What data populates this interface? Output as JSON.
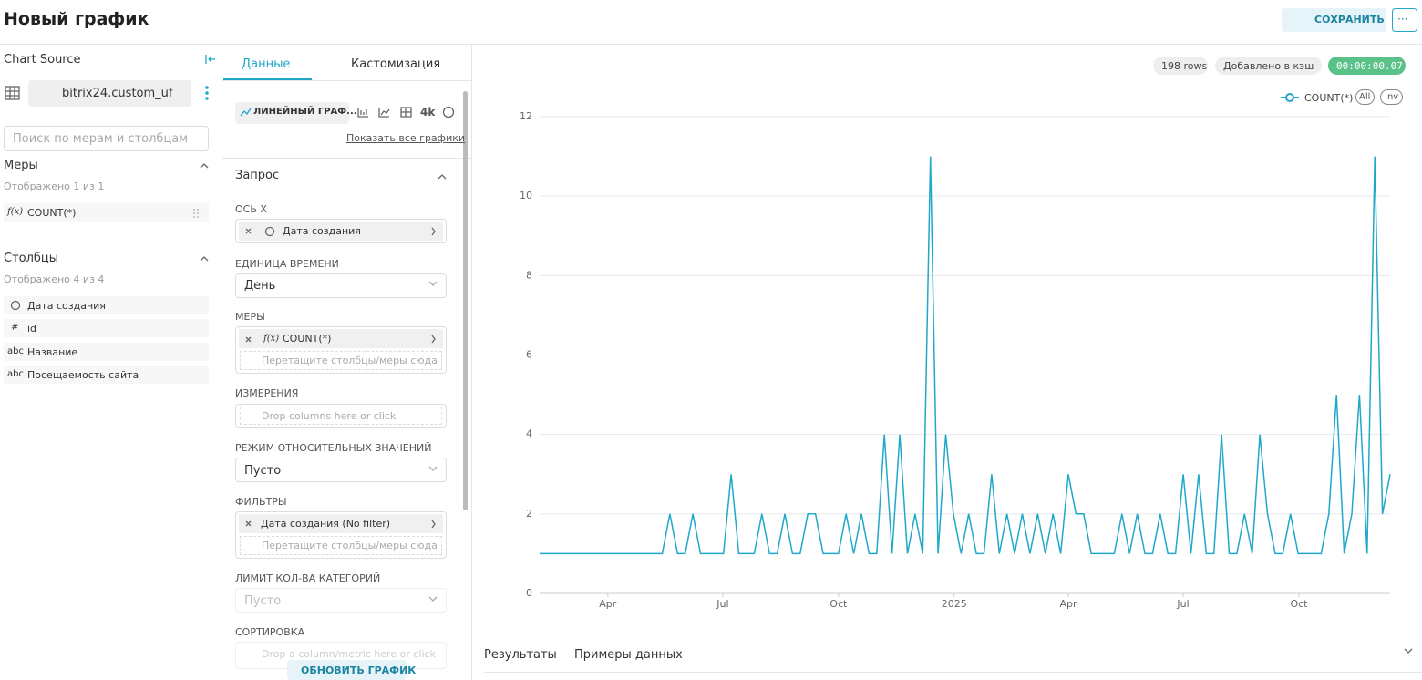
{
  "header": {
    "title": "Новый график",
    "save": "СОХРАНИТЬ",
    "more": "···"
  },
  "sidebar": {
    "title": "Chart Source",
    "dataset": "bitrix24.custom_uf",
    "search_placeholder": "Поиск по мерам и столбцам",
    "measures": {
      "title": "Меры",
      "count": "Отображено 1 из 1",
      "items": [
        {
          "icon": "f(x)",
          "name": "COUNT(*)"
        }
      ]
    },
    "columns": {
      "title": "Столбцы",
      "count": "Отображено 4 из 4",
      "items": [
        {
          "name": "Дата создания"
        },
        {
          "icon": "#",
          "name": "id"
        },
        {
          "icon": "abc",
          "name": "Название"
        },
        {
          "icon": "abc",
          "name": "Посещаемость сайта"
        }
      ]
    }
  },
  "editor": {
    "tabs": [
      "Данные",
      "Кастомизация"
    ],
    "chart_type": "ЛИНЕЙНЫЙ ГРАФ...",
    "resolution": "4k",
    "show_all": "Показать все графики",
    "section": "Запрос",
    "x_axis": {
      "label": "ОСЬ X",
      "value": "Дата создания"
    },
    "time_unit": {
      "label": "ЕДИНИЦА ВРЕМЕНИ",
      "value": "День"
    },
    "metrics": {
      "label": "МЕРЫ",
      "icon": "f(x)",
      "value": "COUNT(*)",
      "placeholder": "Перетащите столбцы/меры сюда"
    },
    "dimensions": {
      "label": "ИЗМЕРЕНИЯ",
      "placeholder": "Drop columns here or click"
    },
    "relative": {
      "label": "РЕЖИМ ОТНОСИТЕЛЬНЫХ ЗНАЧЕНИЙ",
      "value": "Пусто"
    },
    "filters": {
      "label": "ФИЛЬТРЫ",
      "value": "Дата создания (No filter)",
      "placeholder": "Перетащите столбцы/меры сюда"
    },
    "limit": {
      "label": "ЛИМИТ КОЛ-ВА КАТЕГОРИЙ",
      "value": "Пусто"
    },
    "sort": {
      "label": "СОРТИРОВКА",
      "placeholder": "Drop a column/metric here or click"
    },
    "update": "ОБНОВИТЬ ГРАФИК"
  },
  "status": {
    "rows": "198 rows",
    "cache": "Добавлено в кэш",
    "timer": "00:00:00.07"
  },
  "legend_controls": [
    "All",
    "Inv"
  ],
  "results_tabs": [
    "Результаты",
    "Примеры данных"
  ],
  "chart_data": {
    "type": "line",
    "categories": [
      null,
      null,
      null,
      null,
      null,
      null,
      null,
      null,
      null,
      null,
      null,
      null,
      null,
      null,
      null,
      null,
      null,
      null,
      null,
      null,
      null,
      null,
      null,
      null,
      null,
      null,
      null,
      null,
      null,
      null,
      null,
      null,
      null,
      null,
      null,
      null,
      null,
      null,
      null,
      null,
      null,
      null,
      null,
      null,
      null,
      null,
      null,
      null,
      null,
      null,
      null,
      null,
      null,
      null,
      null,
      null,
      null,
      null,
      null,
      null,
      null,
      null,
      null,
      null,
      null,
      null,
      null,
      null,
      null,
      null,
      null,
      null,
      null,
      null,
      null,
      null,
      null,
      null,
      null,
      null,
      null,
      null,
      null,
      null,
      null,
      null,
      null,
      null,
      null,
      null,
      null,
      null,
      null,
      null,
      null,
      null,
      null,
      null,
      null,
      null,
      null,
      null,
      null,
      null,
      null,
      null,
      null,
      null,
      null,
      null,
      null,
      null
    ],
    "series": [
      {
        "name": "COUNT(*)",
        "color": "#1fa8c9",
        "values": [
          1,
          1,
          1,
          1,
          1,
          1,
          1,
          1,
          1,
          1,
          1,
          1,
          1,
          1,
          1,
          1,
          1,
          2,
          1,
          1,
          2,
          1,
          1,
          1,
          1,
          3,
          1,
          1,
          1,
          2,
          1,
          1,
          2,
          1,
          1,
          2,
          2,
          1,
          1,
          1,
          2,
          1,
          2,
          1,
          1,
          4,
          1,
          4,
          1,
          2,
          1,
          11,
          1,
          4,
          2,
          1,
          2,
          1,
          1,
          3,
          1,
          2,
          1,
          2,
          1,
          2,
          1,
          2,
          1,
          3,
          2,
          2,
          1,
          1,
          1,
          1,
          2,
          1,
          2,
          1,
          1,
          2,
          1,
          1,
          3,
          1,
          3,
          1,
          1,
          4,
          1,
          1,
          2,
          1,
          4,
          2,
          1,
          1,
          2,
          1,
          1,
          1,
          1,
          2,
          5,
          1,
          2,
          5,
          1,
          11,
          2,
          3
        ]
      }
    ],
    "ylim": [
      0,
      12
    ],
    "yticks": [
      0,
      2,
      4,
      6,
      8,
      10,
      12
    ],
    "xticks": [
      {
        "value": 8.9,
        "label": "Apr"
      },
      {
        "value": 23.9,
        "label": "Jul"
      },
      {
        "value": 39.0,
        "label": "Oct"
      },
      {
        "value": 54.1,
        "label": "2025"
      },
      {
        "value": 69.0,
        "label": "Apr"
      },
      {
        "value": 84.0,
        "label": "Jul"
      },
      {
        "value": 99.1,
        "label": "Oct"
      }
    ],
    "grid": true
  }
}
